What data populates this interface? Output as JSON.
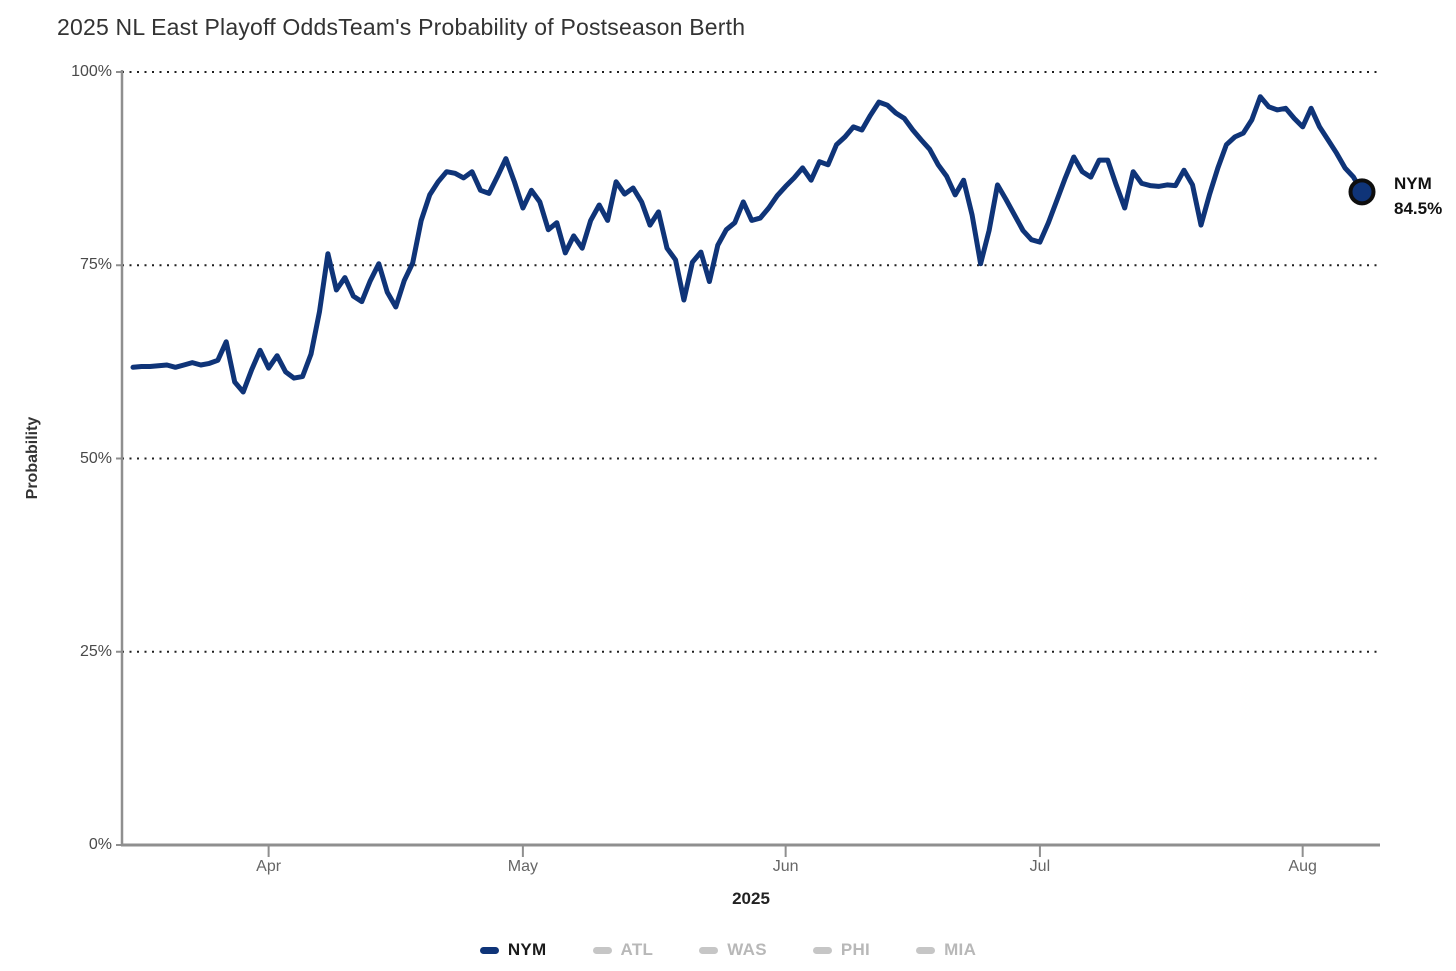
{
  "header": {
    "title": "2025 NL East Playoff Odds",
    "subtitle": "Team's Probability of Postseason Berth"
  },
  "chart_data": {
    "type": "line",
    "title": "2025 NL East Playoff Odds",
    "subtitle": "Team's Probability of Postseason Berth",
    "xlabel": "2025",
    "ylabel": "Probability",
    "ylim": [
      0,
      100
    ],
    "grid": "horizontal-dotted",
    "y_axis": {
      "title": "Probability",
      "range": [
        0,
        100
      ],
      "tick_values": [
        100,
        75,
        50,
        25,
        0
      ],
      "tick_labels": [
        "100%",
        "75%",
        "50%",
        "25%",
        "0%"
      ]
    },
    "x_axis": {
      "title": "2025",
      "tick_labels": [
        "Apr",
        "May",
        "Jun",
        "Jul",
        "Aug"
      ],
      "tick_indices": [
        16,
        46,
        77,
        107,
        138
      ]
    },
    "series": [
      {
        "name": "NYM",
        "color": "#0f3478",
        "values": [
          61.8,
          61.9,
          61.9,
          62.0,
          62.1,
          61.8,
          62.1,
          62.4,
          62.1,
          62.3,
          62.7,
          65.1,
          59.9,
          58.6,
          61.5,
          64.0,
          61.7,
          63.3,
          61.2,
          60.4,
          60.6,
          63.5,
          69.0,
          76.5,
          71.8,
          73.4,
          71.0,
          70.3,
          73.0,
          75.2,
          71.5,
          69.6,
          73.0,
          75.3,
          80.8,
          84.1,
          85.8,
          87.1,
          86.9,
          86.3,
          87.1,
          84.7,
          84.3,
          86.5,
          88.8,
          85.8,
          82.4,
          84.7,
          83.2,
          79.6,
          80.5,
          76.6,
          78.8,
          77.2,
          80.8,
          82.8,
          80.8,
          85.8,
          84.2,
          85.0,
          83.2,
          80.2,
          81.9,
          77.2,
          75.7,
          70.5,
          75.4,
          76.7,
          72.9,
          77.6,
          79.6,
          80.5,
          83.2,
          80.8,
          81.1,
          82.4,
          84.0,
          85.2,
          86.3,
          87.6,
          86.0,
          88.4,
          88.0,
          90.6,
          91.6,
          92.9,
          92.5,
          94.4,
          96.1,
          95.7,
          94.7,
          94.0,
          92.5,
          91.2,
          90.0,
          88.0,
          86.5,
          84.1,
          86.0,
          81.5,
          75.2,
          79.5,
          85.4,
          83.5,
          81.5,
          79.5,
          78.3,
          78.0,
          80.5,
          83.4,
          86.3,
          89.0,
          87.1,
          86.4,
          88.6,
          88.6,
          85.4,
          82.4,
          87.1,
          85.6,
          85.3,
          85.2,
          85.4,
          85.3,
          87.3,
          85.4,
          80.2,
          84.1,
          87.6,
          90.6,
          91.6,
          92.1,
          93.8,
          96.8,
          95.5,
          95.1,
          95.3,
          94.0,
          92.9,
          95.3,
          92.9,
          91.2,
          89.5,
          87.6,
          86.4,
          84.5
        ],
        "end_value": 84.5
      }
    ],
    "end_annotation": {
      "team": "NYM",
      "value": "84.5%"
    },
    "legend": {
      "position": "bottom",
      "items": [
        {
          "label": "NYM",
          "swatch_color": "#0f3478",
          "label_color": "#1a1a1a",
          "active": true
        },
        {
          "label": "ATL",
          "swatch_color": "#c6c6c6",
          "label_color": "#b8b8b8",
          "active": false
        },
        {
          "label": "WAS",
          "swatch_color": "#c6c6c6",
          "label_color": "#b8b8b8",
          "active": false
        },
        {
          "label": "PHI",
          "swatch_color": "#c6c6c6",
          "label_color": "#b8b8b8",
          "active": false
        },
        {
          "label": "MIA",
          "swatch_color": "#c6c6c6",
          "label_color": "#b8b8b8",
          "active": false
        }
      ]
    }
  }
}
